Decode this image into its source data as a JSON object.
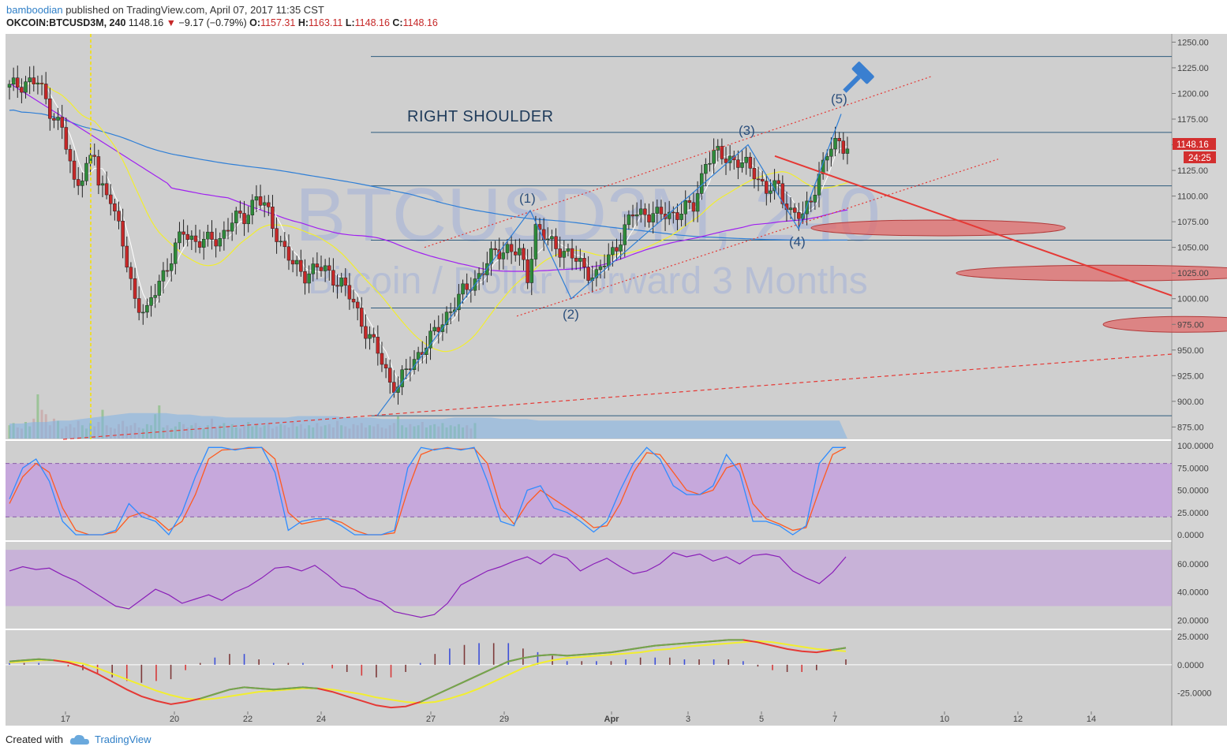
{
  "header": {
    "author": "bamboodian",
    "published": "published on TradingView.com, April 07, 2017 11:35 CST",
    "symbol": "OKCOIN:BTCUSD3M, 240",
    "last": "1148.16",
    "change_arrow": "▼",
    "change": "−9.17 (−0.79%)",
    "o_label": "O:",
    "o": "1157.31",
    "h_label": "H:",
    "h": "1163.11",
    "l_label": "L:",
    "l": "1148.16",
    "c_label": "C:",
    "c": "1148.16"
  },
  "watermark": {
    "line1": "BTCUSD3M, 240",
    "line2": "Bitcoin / Dollar Forward 3 Months"
  },
  "annotations": {
    "right_shoulder": "RIGHT SHOULDER",
    "wave1": "(1)",
    "wave2": "(2)",
    "wave3": "(3)",
    "wave4": "(4)",
    "wave5": "(5)"
  },
  "price_badge": {
    "price": "1148.16",
    "countdown": "24:25"
  },
  "footer": {
    "created_with": "Created with",
    "brand": "TradingView"
  },
  "colors": {
    "up": "#2e8b3a",
    "down": "#c62828",
    "ma_yellow": "#f2ee2f",
    "ma_purple": "#a020f0",
    "ma_blue": "#2f7fd6",
    "ma_white": "#ffffff",
    "stoch_k": "#2f8cff",
    "stoch_d": "#ff5a1f",
    "rsi": "#8a1fb8",
    "band": "#c39be0"
  },
  "chart_data": {
    "type": "candlestick",
    "symbol": "OKCOIN:BTCUSD3M",
    "interval": "240",
    "y_ticks": [
      1250,
      1225,
      1200,
      1175,
      1150,
      1125,
      1100,
      1075,
      1050,
      1025,
      1000,
      975,
      950,
      925,
      900,
      875
    ],
    "ylim": [
      863,
      1258
    ],
    "x_ticks": [
      "17",
      "20",
      "22",
      "24",
      "27",
      "29",
      "Apr",
      "3",
      "5",
      "7",
      "10",
      "12",
      "14"
    ],
    "horizontal_levels": [
      1236,
      1162,
      1110,
      1057,
      991,
      886
    ],
    "close_path": [
      [
        0,
        1205
      ],
      [
        4,
        1212
      ],
      [
        7,
        1210
      ],
      [
        10,
        1185
      ],
      [
        13,
        1165
      ],
      [
        16,
        1112
      ],
      [
        19,
        1128
      ],
      [
        21,
        1140
      ],
      [
        22,
        1110
      ],
      [
        25,
        1102
      ],
      [
        28,
        1050
      ],
      [
        31,
        1000
      ],
      [
        34,
        985
      ],
      [
        37,
        1018
      ],
      [
        40,
        1040
      ],
      [
        43,
        1065
      ],
      [
        46,
        1057
      ],
      [
        49,
        1055
      ],
      [
        52,
        1060
      ],
      [
        55,
        1075
      ],
      [
        58,
        1080
      ],
      [
        61,
        1100
      ],
      [
        64,
        1082
      ],
      [
        67,
        1055
      ],
      [
        70,
        1032
      ],
      [
        73,
        1025
      ],
      [
        76,
        1030
      ],
      [
        79,
        1025
      ],
      [
        82,
        1015
      ],
      [
        85,
        995
      ],
      [
        88,
        970
      ],
      [
        91,
        947
      ],
      [
        94,
        920
      ],
      [
        96,
        915
      ],
      [
        99,
        935
      ],
      [
        102,
        952
      ],
      [
        105,
        965
      ],
      [
        108,
        985
      ],
      [
        111,
        1000
      ],
      [
        114,
        1015
      ],
      [
        117,
        1028
      ],
      [
        120,
        1045
      ],
      [
        123,
        1050
      ],
      [
        126,
        1042
      ],
      [
        128,
        1022
      ],
      [
        130,
        1070
      ],
      [
        133,
        1055
      ],
      [
        136,
        1050
      ],
      [
        139,
        1040
      ],
      [
        142,
        1030
      ],
      [
        145,
        1022
      ],
      [
        148,
        1040
      ],
      [
        151,
        1060
      ],
      [
        154,
        1082
      ],
      [
        157,
        1085
      ],
      [
        160,
        1080
      ],
      [
        163,
        1083
      ],
      [
        166,
        1085
      ],
      [
        169,
        1090
      ],
      [
        172,
        1135
      ],
      [
        175,
        1140
      ],
      [
        178,
        1138
      ],
      [
        181,
        1130
      ],
      [
        184,
        1125
      ],
      [
        187,
        1105
      ],
      [
        190,
        1108
      ],
      [
        193,
        1085
      ],
      [
        196,
        1078
      ],
      [
        199,
        1110
      ],
      [
        202,
        1140
      ],
      [
        205,
        1155
      ],
      [
        207,
        1148
      ]
    ],
    "volume": [
      12,
      14,
      10,
      9,
      15,
      11,
      18,
      40,
      26,
      22,
      12,
      18,
      16,
      9,
      11,
      13,
      10,
      16,
      12,
      9,
      14,
      11,
      15,
      26,
      12,
      10,
      9,
      13,
      16,
      11,
      12,
      14,
      10,
      9,
      13,
      12,
      22,
      30,
      10,
      12,
      9,
      11,
      15,
      13,
      10,
      12,
      14,
      11,
      9,
      12,
      18,
      10,
      12,
      14,
      11,
      13,
      10,
      9,
      12,
      15,
      11,
      13,
      10,
      12,
      14,
      9,
      11,
      13,
      12,
      10,
      15,
      11,
      13,
      9,
      12,
      10,
      14,
      11,
      12,
      13,
      10,
      16,
      12,
      11,
      9,
      13,
      12,
      14,
      10,
      12,
      11,
      13,
      10,
      9,
      12,
      14,
      20,
      12,
      10,
      13,
      11,
      12,
      15,
      10,
      12,
      13,
      11,
      14,
      10,
      12,
      11,
      13,
      10,
      12,
      9,
      14
    ],
    "volume_ma": [
      10,
      10,
      11,
      11,
      12,
      12,
      13,
      14,
      15,
      16,
      17,
      17,
      17,
      17,
      16,
      16,
      15,
      15,
      14,
      14,
      14,
      14,
      14,
      14,
      15,
      15,
      15,
      15,
      14,
      14,
      14,
      13,
      13,
      13,
      13,
      13,
      13,
      14,
      14,
      14,
      14,
      13,
      13,
      13,
      12,
      12,
      12,
      12,
      12,
      12,
      12,
      12,
      12,
      12,
      12,
      12,
      12,
      12,
      12,
      12,
      12,
      12,
      12,
      12,
      12,
      12,
      12,
      12,
      12,
      12
    ],
    "stochastic": {
      "levels": [
        80,
        20
      ],
      "ylim": [
        0,
        100
      ],
      "k": [
        40,
        75,
        85,
        60,
        15,
        0,
        0,
        0,
        5,
        35,
        20,
        15,
        0,
        25,
        65,
        98,
        98,
        95,
        98,
        98,
        70,
        5,
        15,
        18,
        18,
        10,
        0,
        0,
        0,
        5,
        75,
        98,
        95,
        98,
        95,
        98,
        60,
        15,
        10,
        50,
        55,
        30,
        25,
        15,
        3,
        15,
        50,
        80,
        98,
        85,
        55,
        45,
        45,
        55,
        90,
        70,
        15,
        15,
        10,
        0,
        10,
        80,
        98,
        98
      ],
      "d": [
        35,
        65,
        80,
        70,
        30,
        5,
        0,
        0,
        3,
        20,
        25,
        18,
        5,
        15,
        45,
        85,
        95,
        96,
        97,
        98,
        85,
        25,
        12,
        15,
        18,
        14,
        5,
        0,
        0,
        2,
        50,
        90,
        96,
        97,
        96,
        97,
        80,
        30,
        12,
        35,
        50,
        40,
        30,
        20,
        8,
        10,
        35,
        70,
        92,
        90,
        70,
        50,
        45,
        50,
        75,
        80,
        35,
        18,
        12,
        5,
        8,
        50,
        90,
        98
      ]
    },
    "rsi": {
      "band": [
        30,
        70
      ],
      "ticks": [
        60,
        40,
        20
      ],
      "ylim": [
        14,
        74
      ],
      "values": [
        55,
        58,
        56,
        57,
        52,
        48,
        42,
        36,
        30,
        28,
        35,
        42,
        38,
        32,
        35,
        38,
        34,
        40,
        44,
        50,
        57,
        58,
        55,
        59,
        52,
        44,
        42,
        36,
        33,
        26,
        24,
        22,
        24,
        32,
        45,
        50,
        55,
        58,
        62,
        65,
        60,
        67,
        64,
        55,
        60,
        64,
        58,
        53,
        55,
        60,
        68,
        65,
        67,
        62,
        65,
        60,
        66,
        67,
        65,
        55,
        50,
        46,
        54,
        65
      ]
    },
    "macd": {
      "ticks": [
        25,
        0,
        -25
      ],
      "ylim": [
        -40,
        30
      ],
      "macd_line": [
        3,
        4,
        5,
        4,
        2,
        -2,
        -8,
        -15,
        -22,
        -28,
        -32,
        -35,
        -33,
        -30,
        -26,
        -22,
        -20,
        -21,
        -22,
        -21,
        -20,
        -21,
        -24,
        -28,
        -32,
        -36,
        -38,
        -37,
        -33,
        -27,
        -21,
        -15,
        -9,
        -3,
        3,
        6,
        8,
        9,
        8,
        9,
        10,
        11,
        13,
        15,
        17,
        18,
        19,
        20,
        21,
        22,
        22,
        20,
        17,
        14,
        12,
        11,
        13,
        15
      ],
      "signal_line": [
        2,
        3,
        4,
        4,
        3,
        1,
        -3,
        -8,
        -13,
        -18,
        -23,
        -27,
        -30,
        -31,
        -30,
        -28,
        -26,
        -24,
        -23,
        -22,
        -21,
        -21,
        -22,
        -24,
        -26,
        -29,
        -31,
        -33,
        -34,
        -33,
        -30,
        -26,
        -21,
        -15,
        -9,
        -3,
        1,
        4,
        6,
        7,
        8,
        9,
        10,
        11,
        13,
        14,
        16,
        17,
        18,
        19,
        20,
        21,
        20,
        18,
        16,
        14,
        13,
        12
      ]
    },
    "fib_clouds": [
      {
        "center": 1069,
        "label": ""
      },
      {
        "center": 1025,
        "label": ""
      },
      {
        "center": 975,
        "label": ""
      }
    ]
  }
}
